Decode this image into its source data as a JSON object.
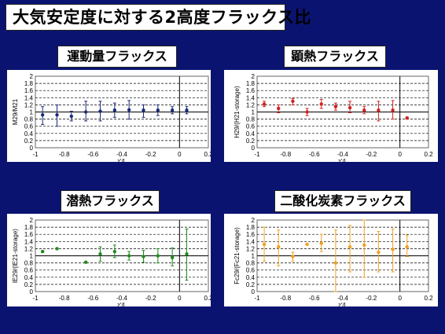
{
  "slide_title": "大気安定度に対する2高度フラックス比",
  "chart_data": [
    {
      "id": "momentum",
      "type": "scatter",
      "title": "運動量フラックス",
      "xlabel": "z'/L",
      "ylabel": "M29/M21",
      "xlim": [
        -1,
        0.2
      ],
      "ylim": [
        0,
        2
      ],
      "xticks": [
        "-1",
        "-0.8",
        "-0.6",
        "-0.4",
        "-0.2",
        "0",
        "0.2"
      ],
      "yticks": [
        "0",
        "0.2",
        "0.4",
        "0.6",
        "0.8",
        "1",
        "1.2",
        "1.4",
        "1.6",
        "1.8",
        "2"
      ],
      "color": "#1a2a7a",
      "points": [
        {
          "x": -0.95,
          "y": 0.92,
          "lo": 0.65,
          "hi": 1.15
        },
        {
          "x": -0.85,
          "y": 0.92,
          "lo": 0.6,
          "hi": 1.2
        },
        {
          "x": -0.75,
          "y": 0.88,
          "lo": 0.75,
          "hi": 1.02
        },
        {
          "x": -0.65,
          "y": 1.0,
          "lo": 0.75,
          "hi": 1.3
        },
        {
          "x": -0.55,
          "y": 1.02,
          "lo": 0.75,
          "hi": 1.3
        },
        {
          "x": -0.45,
          "y": 1.05,
          "lo": 0.85,
          "hi": 1.25
        },
        {
          "x": -0.35,
          "y": 1.06,
          "lo": 0.8,
          "hi": 1.32
        },
        {
          "x": -0.25,
          "y": 1.05,
          "lo": 0.85,
          "hi": 1.2
        },
        {
          "x": -0.15,
          "y": 1.05,
          "lo": 0.9,
          "hi": 1.2
        },
        {
          "x": -0.05,
          "y": 1.05,
          "lo": 0.95,
          "hi": 1.15
        },
        {
          "x": 0.05,
          "y": 1.05,
          "lo": 0.95,
          "hi": 1.15
        }
      ]
    },
    {
      "id": "sensible",
      "type": "scatter",
      "title": "顕熱フラックス",
      "xlabel": "z'/L",
      "ylabel": "H29/(H21-storage)",
      "xlim": [
        -1,
        0.2
      ],
      "ylim": [
        0,
        2
      ],
      "xticks": [
        "-1",
        "-0.8",
        "-0.6",
        "-0.4",
        "-0.2",
        "0",
        "0.2"
      ],
      "yticks": [
        "0",
        "0.2",
        "0.4",
        "0.6",
        "0.8",
        "1",
        "1.2",
        "1.4",
        "1.6",
        "1.8",
        "2"
      ],
      "color": "#d42020",
      "points": [
        {
          "x": -0.95,
          "y": 1.22,
          "lo": 1.15,
          "hi": 1.3
        },
        {
          "x": -0.85,
          "y": 1.1,
          "lo": 0.98,
          "hi": 1.2
        },
        {
          "x": -0.75,
          "y": 1.3,
          "lo": 1.2,
          "hi": 1.38
        },
        {
          "x": -0.65,
          "y": 1.0,
          "lo": 0.9,
          "hi": 1.1
        },
        {
          "x": -0.55,
          "y": 1.22,
          "lo": 1.1,
          "hi": 1.35
        },
        {
          "x": -0.45,
          "y": 1.15,
          "lo": 1.05,
          "hi": 1.25
        },
        {
          "x": -0.35,
          "y": 1.12,
          "lo": 0.98,
          "hi": 1.3
        },
        {
          "x": -0.25,
          "y": 1.05,
          "lo": 0.95,
          "hi": 1.15
        },
        {
          "x": -0.15,
          "y": 1.05,
          "lo": 0.75,
          "hi": 1.3
        },
        {
          "x": -0.05,
          "y": 1.05,
          "lo": 0.8,
          "hi": 1.32
        },
        {
          "x": 0.05,
          "y": 0.83,
          "lo": 0.8,
          "hi": 0.86
        }
      ]
    },
    {
      "id": "latent",
      "type": "scatter",
      "title": "潜熱フラックス",
      "xlabel": "z'/L",
      "ylabel": "lE29/(lE21-storage)",
      "xlim": [
        -1,
        0.2
      ],
      "ylim": [
        0,
        2
      ],
      "xticks": [
        "-1",
        "-0.8",
        "-0.6",
        "-0.4",
        "-0.2",
        "0",
        "0.2"
      ],
      "yticks": [
        "0",
        "0.2",
        "0.4",
        "0.6",
        "0.8",
        "1",
        "1.2",
        "1.4",
        "1.6",
        "1.8",
        "2"
      ],
      "color": "#1f8a1f",
      "points": [
        {
          "x": -0.95,
          "y": 1.12,
          "lo": 1.1,
          "hi": 1.14
        },
        {
          "x": -0.85,
          "y": 1.2,
          "lo": 1.18,
          "hi": 1.22
        },
        {
          "x": -0.65,
          "y": 0.82,
          "lo": 0.8,
          "hi": 0.84
        },
        {
          "x": -0.55,
          "y": 1.05,
          "lo": 0.85,
          "hi": 1.25
        },
        {
          "x": -0.45,
          "y": 1.12,
          "lo": 0.95,
          "hi": 1.3
        },
        {
          "x": -0.35,
          "y": 1.0,
          "lo": 0.88,
          "hi": 1.12
        },
        {
          "x": -0.25,
          "y": 0.98,
          "lo": 0.82,
          "hi": 1.15
        },
        {
          "x": -0.15,
          "y": 1.0,
          "lo": 0.8,
          "hi": 1.2
        },
        {
          "x": -0.05,
          "y": 0.95,
          "lo": 0.72,
          "hi": 1.22
        },
        {
          "x": 0.05,
          "y": 1.05,
          "lo": 0.32,
          "hi": 1.75
        }
      ]
    },
    {
      "id": "co2",
      "type": "scatter",
      "title": "二酸化炭素フラックス",
      "xlabel": "z'/L",
      "ylabel": "Fc29/(Fc21-storage)",
      "xlim": [
        -1,
        0.2
      ],
      "ylim": [
        0,
        2
      ],
      "xticks": [
        "-1",
        "-0.8",
        "-0.6",
        "-0.4",
        "-0.2",
        "0",
        "0.2"
      ],
      "yticks": [
        "0",
        "0.2",
        "0.4",
        "0.6",
        "0.8",
        "1",
        "1.2",
        "1.4",
        "1.6",
        "1.8",
        "2"
      ],
      "color": "#f0a020",
      "points": [
        {
          "x": -0.95,
          "y": 1.32,
          "lo": 0.85,
          "hi": 1.8
        },
        {
          "x": -0.85,
          "y": 1.25,
          "lo": 0.72,
          "hi": 1.72
        },
        {
          "x": -0.75,
          "y": 0.98,
          "lo": 0.85,
          "hi": 1.1
        },
        {
          "x": -0.65,
          "y": 1.32,
          "lo": 1.3,
          "hi": 1.34
        },
        {
          "x": -0.55,
          "y": 1.35,
          "lo": 1.12,
          "hi": 1.6
        },
        {
          "x": -0.45,
          "y": 0.8,
          "lo": 0.0,
          "hi": 1.72
        },
        {
          "x": -0.35,
          "y": 1.25,
          "lo": 0.55,
          "hi": 1.85
        },
        {
          "x": -0.25,
          "y": 1.3,
          "lo": 0.4,
          "hi": 2.0
        },
        {
          "x": -0.15,
          "y": 1.1,
          "lo": 0.55,
          "hi": 1.68
        },
        {
          "x": -0.05,
          "y": 1.18,
          "lo": 0.55,
          "hi": 1.75
        },
        {
          "x": 0.05,
          "y": 1.25,
          "lo": 0.98,
          "hi": 1.58
        }
      ]
    }
  ]
}
